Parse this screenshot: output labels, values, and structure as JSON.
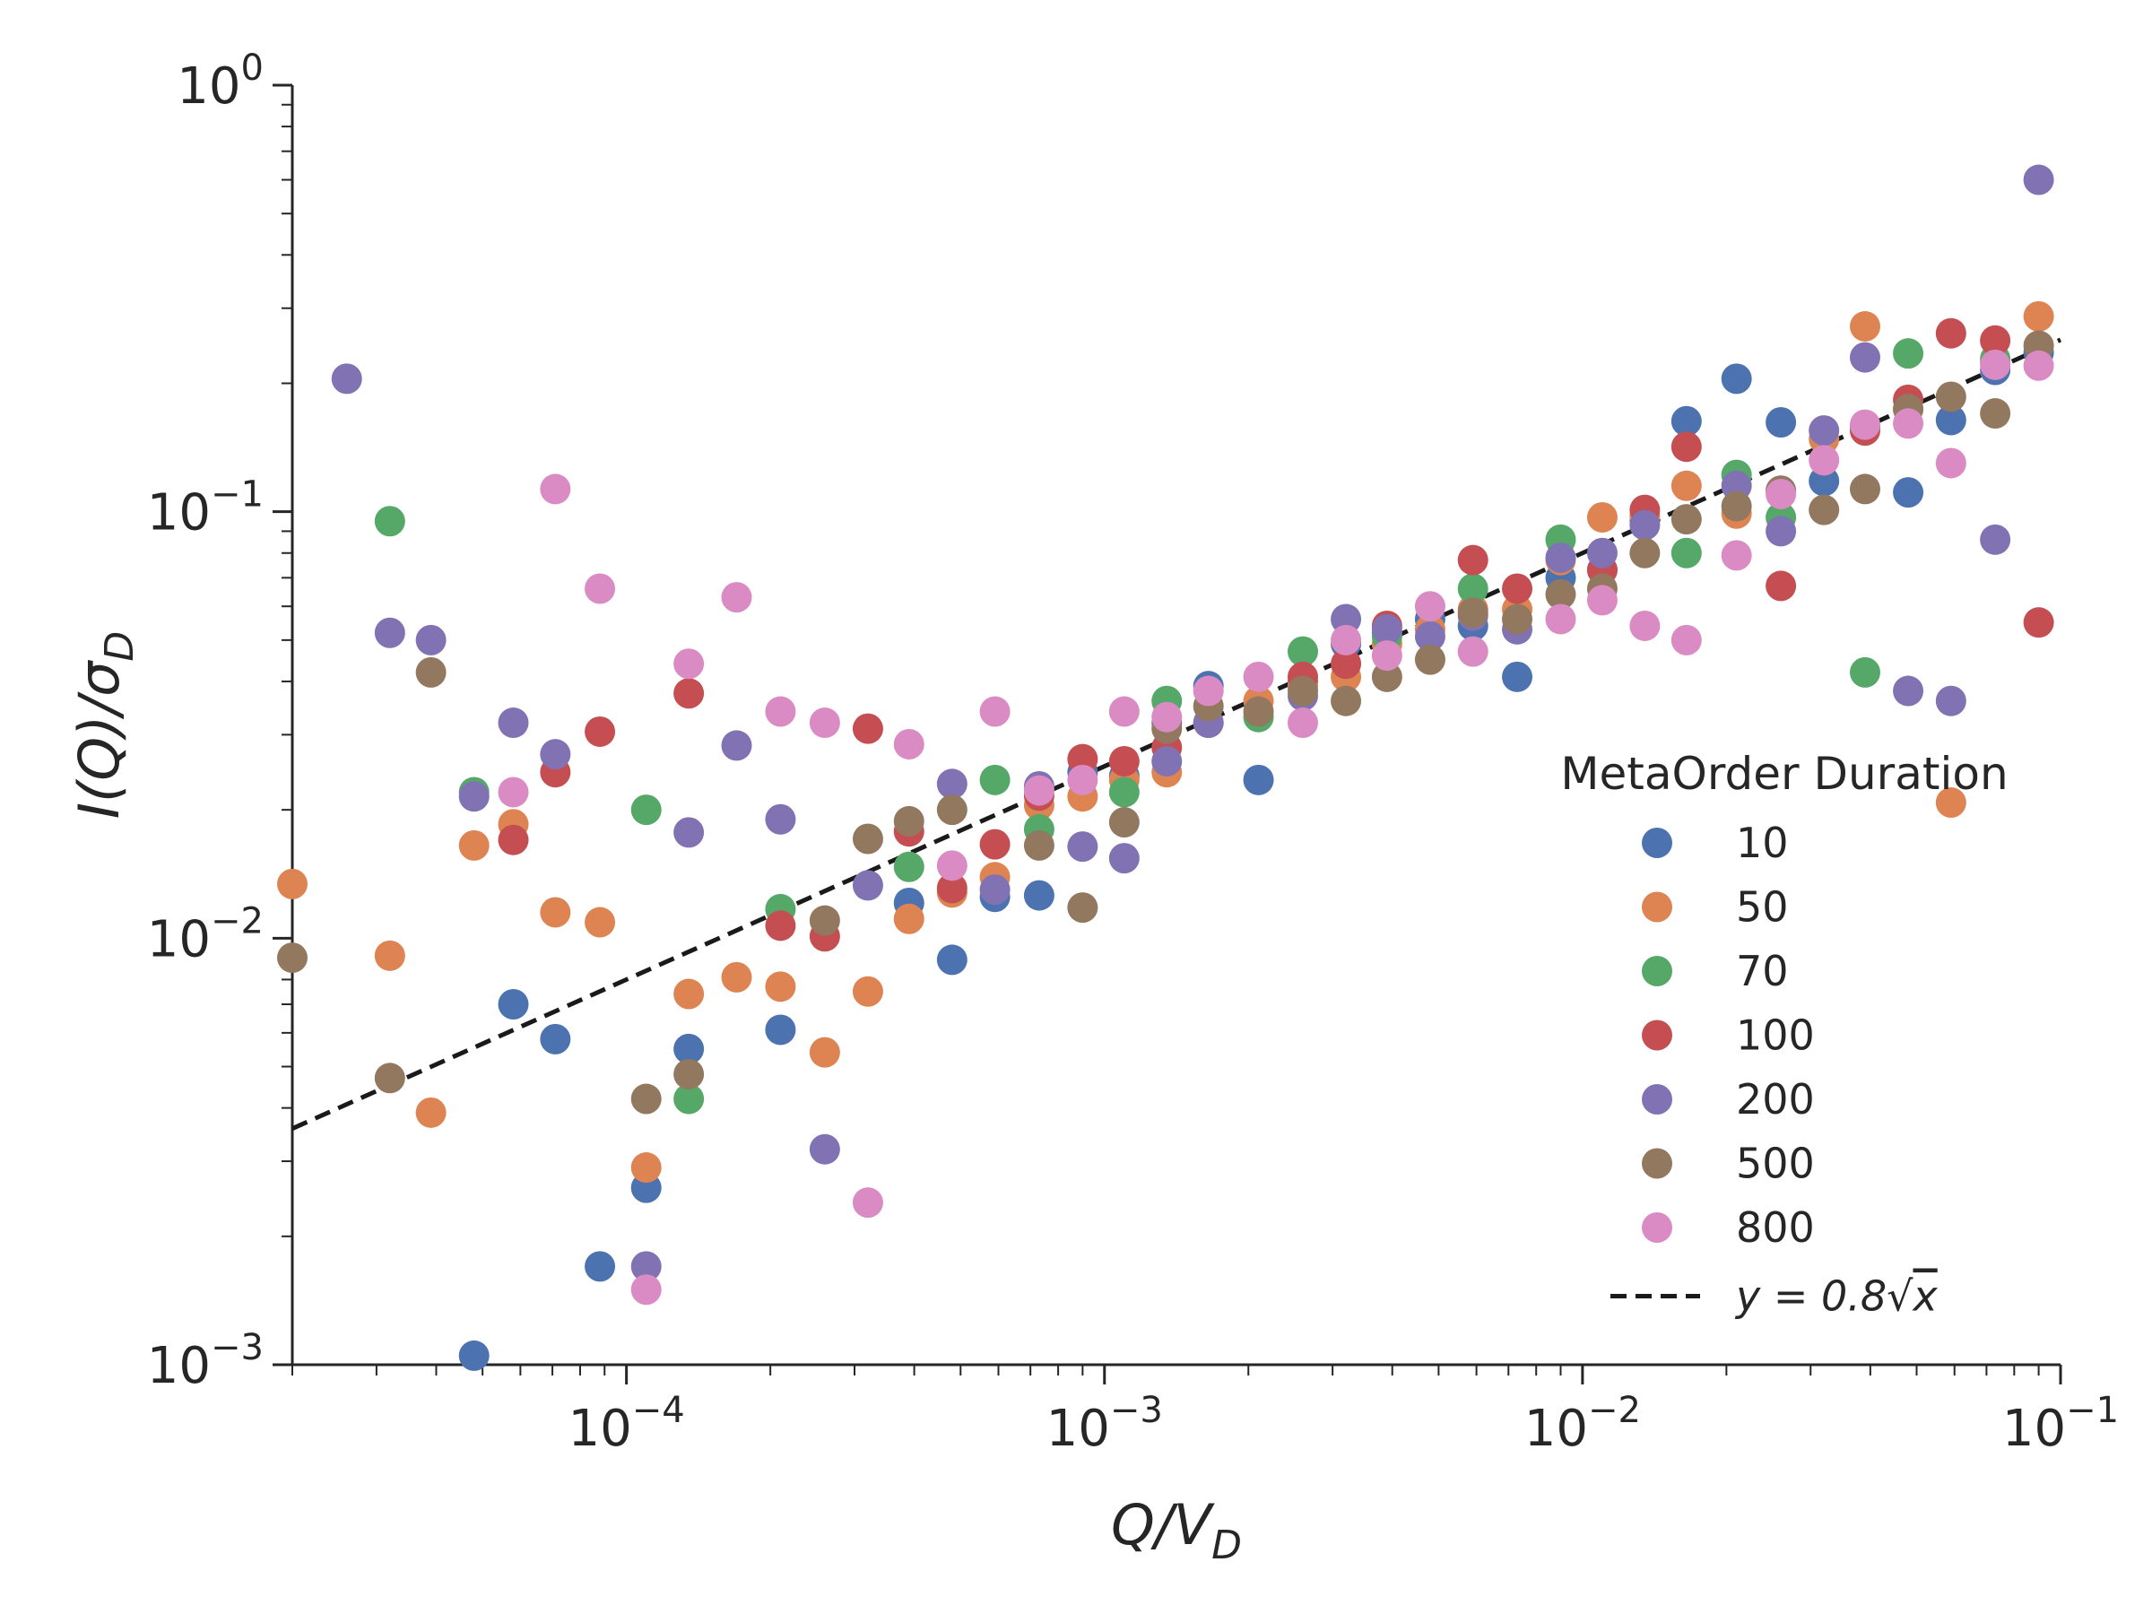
{
  "chart_data": {
    "type": "scatter",
    "xscale": "log",
    "yscale": "log",
    "xlim": [
      2e-05,
      0.1
    ],
    "ylim": [
      0.001,
      1
    ],
    "xlabel": "Q/V_D",
    "ylabel": "I(Q)/σ_D",
    "x_ticks": [
      {
        "value": 0.0001,
        "base": "10",
        "exp": "−4"
      },
      {
        "value": 0.001,
        "base": "10",
        "exp": "−3"
      },
      {
        "value": 0.01,
        "base": "10",
        "exp": "−2"
      },
      {
        "value": 0.1,
        "base": "10",
        "exp": "−1"
      }
    ],
    "y_ticks": [
      {
        "value": 0.001,
        "base": "10",
        "exp": "−3"
      },
      {
        "value": 0.01,
        "base": "10",
        "exp": "−2"
      },
      {
        "value": 0.1,
        "base": "10",
        "exp": "−1"
      },
      {
        "value": 1,
        "base": "10",
        "exp": "0"
      }
    ],
    "grid": false,
    "legend": {
      "title": "MetaOrder Duration",
      "placement": "lower-right",
      "fit_label_prefix": "y = 0.8",
      "fit_label_radicand": "x"
    },
    "fit_line": {
      "coef": 0.8,
      "power": 0.5,
      "style": "dashed",
      "color": "#1a1a1a"
    },
    "series": [
      {
        "name": "10",
        "color": "#4c72b0",
        "points": [
          [
            4.8e-05,
            0.00105
          ],
          [
            5.8e-05,
            0.007
          ],
          [
            7.1e-05,
            0.0058
          ],
          [
            8.8e-05,
            0.0017
          ],
          [
            0.00011,
            0.0026
          ],
          [
            0.000135,
            0.0055
          ],
          [
            0.00021,
            0.0061
          ],
          [
            0.00039,
            0.0121
          ],
          [
            0.00048,
            0.0089
          ],
          [
            0.00059,
            0.0125
          ],
          [
            0.00073,
            0.0126
          ],
          [
            0.0009,
            0.0245
          ],
          [
            0.0011,
            0.024
          ],
          [
            0.00135,
            0.032
          ],
          [
            0.00165,
            0.039
          ],
          [
            0.0021,
            0.0235
          ],
          [
            0.0026,
            0.04
          ],
          [
            0.0032,
            0.049
          ],
          [
            0.0039,
            0.052
          ],
          [
            0.0048,
            0.056
          ],
          [
            0.0059,
            0.054
          ],
          [
            0.0073,
            0.041
          ],
          [
            0.009,
            0.07
          ],
          [
            0.011,
            0.073
          ],
          [
            0.0135,
            0.095
          ],
          [
            0.0165,
            0.163
          ],
          [
            0.021,
            0.205
          ],
          [
            0.026,
            0.162
          ],
          [
            0.032,
            0.118
          ],
          [
            0.039,
            0.158
          ],
          [
            0.048,
            0.111
          ],
          [
            0.059,
            0.164
          ],
          [
            0.073,
            0.215
          ],
          [
            0.09,
            0.236
          ]
        ]
      },
      {
        "name": "50",
        "color": "#dd8452",
        "points": [
          [
            2e-05,
            0.0134
          ],
          [
            3.2e-05,
            0.0091
          ],
          [
            3.9e-05,
            0.0039
          ],
          [
            4.8e-05,
            0.0165
          ],
          [
            5.8e-05,
            0.0185
          ],
          [
            7.1e-05,
            0.0115
          ],
          [
            8.8e-05,
            0.0109
          ],
          [
            0.00011,
            0.0029
          ],
          [
            0.000135,
            0.0074
          ],
          [
            0.00017,
            0.0081
          ],
          [
            0.00021,
            0.0077
          ],
          [
            0.00026,
            0.0054
          ],
          [
            0.00032,
            0.0075
          ],
          [
            0.00039,
            0.0111
          ],
          [
            0.00048,
            0.0128
          ],
          [
            0.00059,
            0.0139
          ],
          [
            0.00073,
            0.0205
          ],
          [
            0.0009,
            0.0215
          ],
          [
            0.0011,
            0.0235
          ],
          [
            0.00135,
            0.0245
          ],
          [
            0.00165,
            0.032
          ],
          [
            0.0021,
            0.036
          ],
          [
            0.0026,
            0.039
          ],
          [
            0.0032,
            0.041
          ],
          [
            0.0039,
            0.049
          ],
          [
            0.0048,
            0.053
          ],
          [
            0.0059,
            0.059
          ],
          [
            0.0073,
            0.059
          ],
          [
            0.009,
            0.077
          ],
          [
            0.011,
            0.097
          ],
          [
            0.0135,
            0.098
          ],
          [
            0.0165,
            0.115
          ],
          [
            0.021,
            0.099
          ],
          [
            0.026,
            0.112
          ],
          [
            0.032,
            0.148
          ],
          [
            0.039,
            0.272
          ],
          [
            0.048,
            0.174
          ],
          [
            0.059,
            0.0208
          ],
          [
            0.073,
            0.224
          ],
          [
            0.09,
            0.287
          ]
        ]
      },
      {
        "name": "70",
        "color": "#55a868",
        "points": [
          [
            3.2e-05,
            0.095
          ],
          [
            4.8e-05,
            0.022
          ],
          [
            0.00011,
            0.02
          ],
          [
            0.000135,
            0.0042
          ],
          [
            0.00021,
            0.0117
          ],
          [
            0.00039,
            0.0147
          ],
          [
            0.00059,
            0.0235
          ],
          [
            0.00073,
            0.018
          ],
          [
            0.0011,
            0.022
          ],
          [
            0.00135,
            0.036
          ],
          [
            0.0021,
            0.033
          ],
          [
            0.0026,
            0.047
          ],
          [
            0.0039,
            0.051
          ],
          [
            0.0059,
            0.066
          ],
          [
            0.009,
            0.086
          ],
          [
            0.0165,
            0.08
          ],
          [
            0.021,
            0.122
          ],
          [
            0.026,
            0.097
          ],
          [
            0.039,
            0.042
          ],
          [
            0.048,
            0.235
          ],
          [
            0.073,
            0.228
          ]
        ]
      },
      {
        "name": "100",
        "color": "#c44e52",
        "points": [
          [
            5.8e-05,
            0.017
          ],
          [
            7.1e-05,
            0.0245
          ],
          [
            8.8e-05,
            0.0305
          ],
          [
            0.000135,
            0.0375
          ],
          [
            0.00021,
            0.0107
          ],
          [
            0.00026,
            0.0101
          ],
          [
            0.00032,
            0.031
          ],
          [
            0.00039,
            0.0178
          ],
          [
            0.00048,
            0.0131
          ],
          [
            0.00059,
            0.0166
          ],
          [
            0.00073,
            0.0216
          ],
          [
            0.0009,
            0.0263
          ],
          [
            0.0011,
            0.026
          ],
          [
            0.00135,
            0.028
          ],
          [
            0.0026,
            0.041
          ],
          [
            0.0032,
            0.044
          ],
          [
            0.0039,
            0.054
          ],
          [
            0.0059,
            0.077
          ],
          [
            0.0073,
            0.066
          ],
          [
            0.011,
            0.073
          ],
          [
            0.0135,
            0.101
          ],
          [
            0.0165,
            0.142
          ],
          [
            0.026,
            0.067
          ],
          [
            0.039,
            0.155
          ],
          [
            0.048,
            0.183
          ],
          [
            0.059,
            0.262
          ],
          [
            0.073,
            0.252
          ],
          [
            0.09,
            0.055
          ]
        ]
      },
      {
        "name": "200",
        "color": "#8172b3",
        "points": [
          [
            2.6e-05,
            0.205
          ],
          [
            3.2e-05,
            0.052
          ],
          [
            3.9e-05,
            0.05
          ],
          [
            4.8e-05,
            0.0215
          ],
          [
            5.8e-05,
            0.032
          ],
          [
            7.1e-05,
            0.027
          ],
          [
            0.00011,
            0.0017
          ],
          [
            0.000135,
            0.0177
          ],
          [
            0.00017,
            0.0283
          ],
          [
            0.00021,
            0.019
          ],
          [
            0.00026,
            0.0032
          ],
          [
            0.00032,
            0.0133
          ],
          [
            0.00048,
            0.023
          ],
          [
            0.00059,
            0.013
          ],
          [
            0.00073,
            0.0227
          ],
          [
            0.0009,
            0.0164
          ],
          [
            0.0011,
            0.0154
          ],
          [
            0.00135,
            0.026
          ],
          [
            0.00165,
            0.032
          ],
          [
            0.0026,
            0.037
          ],
          [
            0.0032,
            0.056
          ],
          [
            0.0039,
            0.053
          ],
          [
            0.0048,
            0.051
          ],
          [
            0.0059,
            0.057
          ],
          [
            0.0073,
            0.053
          ],
          [
            0.009,
            0.078
          ],
          [
            0.011,
            0.08
          ],
          [
            0.0135,
            0.093
          ],
          [
            0.021,
            0.115
          ],
          [
            0.026,
            0.09
          ],
          [
            0.032,
            0.155
          ],
          [
            0.039,
            0.23
          ],
          [
            0.048,
            0.038
          ],
          [
            0.059,
            0.036
          ],
          [
            0.073,
            0.086
          ],
          [
            0.09,
            0.6
          ]
        ]
      },
      {
        "name": "500",
        "color": "#937860",
        "points": [
          [
            2e-05,
            0.009
          ],
          [
            3.2e-05,
            0.0047
          ],
          [
            3.9e-05,
            0.042
          ],
          [
            0.00011,
            0.0042
          ],
          [
            0.000135,
            0.0048
          ],
          [
            0.00026,
            0.011
          ],
          [
            0.00032,
            0.0171
          ],
          [
            0.00039,
            0.0188
          ],
          [
            0.00048,
            0.02
          ],
          [
            0.00073,
            0.0165
          ],
          [
            0.0009,
            0.0118
          ],
          [
            0.0011,
            0.0187
          ],
          [
            0.00135,
            0.031
          ],
          [
            0.00165,
            0.035
          ],
          [
            0.0021,
            0.034
          ],
          [
            0.0026,
            0.038
          ],
          [
            0.0032,
            0.036
          ],
          [
            0.0039,
            0.041
          ],
          [
            0.0048,
            0.045
          ],
          [
            0.0059,
            0.058
          ],
          [
            0.0073,
            0.056
          ],
          [
            0.009,
            0.064
          ],
          [
            0.011,
            0.066
          ],
          [
            0.0135,
            0.08
          ],
          [
            0.0165,
            0.096
          ],
          [
            0.021,
            0.103
          ],
          [
            0.026,
            0.112
          ],
          [
            0.032,
            0.101
          ],
          [
            0.039,
            0.113
          ],
          [
            0.048,
            0.174
          ],
          [
            0.059,
            0.186
          ],
          [
            0.073,
            0.17
          ],
          [
            0.09,
            0.245
          ]
        ]
      },
      {
        "name": "800",
        "color": "#da8bc3",
        "points": [
          [
            5.8e-05,
            0.022
          ],
          [
            7.1e-05,
            0.113
          ],
          [
            8.8e-05,
            0.066
          ],
          [
            0.00011,
            0.0015
          ],
          [
            0.000135,
            0.044
          ],
          [
            0.00017,
            0.063
          ],
          [
            0.00021,
            0.034
          ],
          [
            0.00026,
            0.032
          ],
          [
            0.00032,
            0.0024
          ],
          [
            0.00039,
            0.0285
          ],
          [
            0.00048,
            0.0148
          ],
          [
            0.00059,
            0.034
          ],
          [
            0.00073,
            0.0222
          ],
          [
            0.0009,
            0.0235
          ],
          [
            0.0011,
            0.034
          ],
          [
            0.00135,
            0.033
          ],
          [
            0.00165,
            0.038
          ],
          [
            0.0021,
            0.041
          ],
          [
            0.0026,
            0.032
          ],
          [
            0.0032,
            0.05
          ],
          [
            0.0039,
            0.046
          ],
          [
            0.0048,
            0.06
          ],
          [
            0.0059,
            0.047
          ],
          [
            0.009,
            0.056
          ],
          [
            0.011,
            0.062
          ],
          [
            0.0135,
            0.054
          ],
          [
            0.0165,
            0.05
          ],
          [
            0.021,
            0.079
          ],
          [
            0.026,
            0.11
          ],
          [
            0.032,
            0.132
          ],
          [
            0.039,
            0.16
          ],
          [
            0.048,
            0.161
          ],
          [
            0.059,
            0.13
          ],
          [
            0.073,
            0.221
          ],
          [
            0.09,
            0.22
          ]
        ]
      }
    ]
  }
}
